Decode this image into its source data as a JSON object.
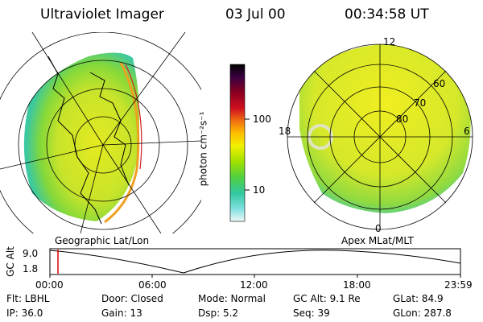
{
  "header": {
    "title": "Ultraviolet Imager",
    "date": "03 Jul 00",
    "time": "00:34:58 UT"
  },
  "left_panel": {
    "label": "Geographic Lat/Lon"
  },
  "right_panel": {
    "label": "Apex MLat/MLT",
    "mlt_labels": [
      "12",
      "18",
      "6",
      "0"
    ],
    "lat_labels": [
      "60",
      "70",
      "80"
    ]
  },
  "colorbar": {
    "unit": "photon cm⁻²s⁻¹",
    "ticks": [
      "100",
      "10"
    ],
    "colors": [
      "#000000",
      "#3a0040",
      "#8a0020",
      "#d01020",
      "#f07010",
      "#ffc000",
      "#f0f000",
      "#a0e000",
      "#50d040",
      "#30c8a0",
      "#80e0e0",
      "#e0f0f0"
    ]
  },
  "altitude_plot": {
    "y_axis_label": "GC Alt",
    "y_ticks": [
      "9.0",
      "1.8"
    ],
    "x_ticks": [
      "00:00",
      "06:00",
      "12:00",
      "18:00",
      "23:59"
    ],
    "current_marker_color": "#e00000"
  },
  "info": {
    "row1": {
      "flt": "Flt: LBHL",
      "door": "Door: Closed",
      "mode": "Mode: Normal",
      "gc_alt": "GC Alt: 9.1 Re",
      "glat": "GLat: 84.9"
    },
    "row2": {
      "ip": "IP: 36.0",
      "gain": "Gain: 13",
      "dsp": "Dsp:   5.2",
      "seq": "Seq: 39",
      "glon": "GLon: 287.8"
    }
  }
}
